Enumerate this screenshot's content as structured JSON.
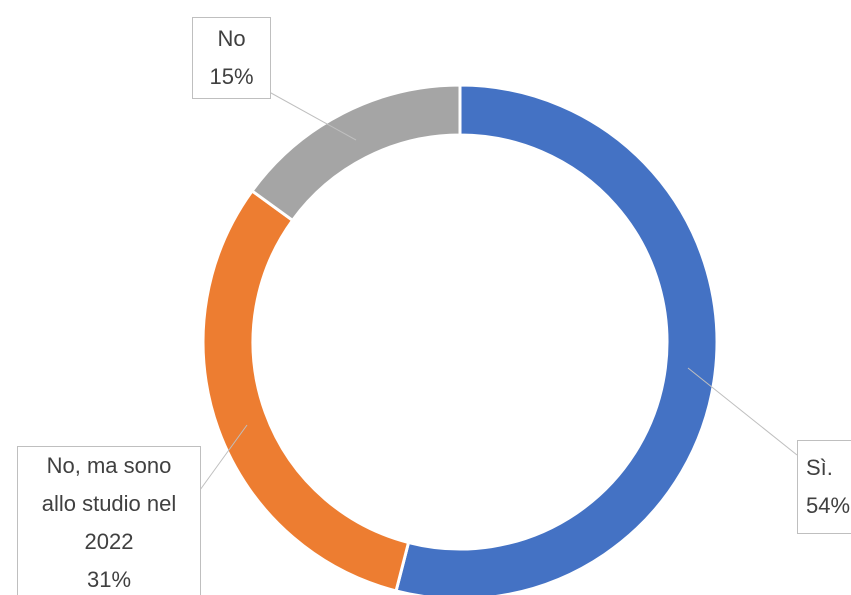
{
  "chart_data": {
    "type": "donut",
    "categories": [
      "Sì.",
      "No, ma sono allo studio nel 2022",
      "No"
    ],
    "values": [
      54,
      31,
      15
    ],
    "value_labels": [
      "54%",
      "31%",
      "15%"
    ],
    "colors": [
      "#4472c4",
      "#ed7d31",
      "#a5a5a5"
    ]
  }
}
